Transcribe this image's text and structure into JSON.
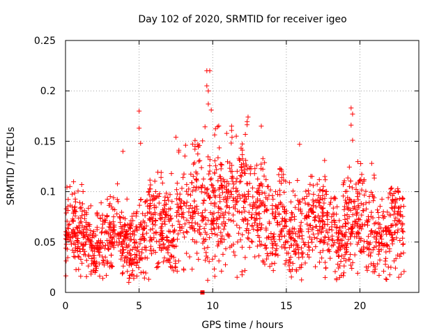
{
  "chart_data": {
    "type": "scatter",
    "title": "Day 102 of 2020, SRMTID for receiver igeo",
    "xlabel": "GPS time / hours",
    "ylabel": "SRMTID / TECUs",
    "xlim": [
      0,
      24
    ],
    "ylim": [
      0,
      0.25
    ],
    "xticks": [
      0,
      5,
      10,
      15,
      20
    ],
    "yticks": [
      0,
      0.05,
      0.1,
      0.15,
      0.2,
      0.25
    ],
    "xtick_labels": [
      "0",
      "5",
      "10",
      "15",
      "20"
    ],
    "ytick_labels": [
      "0",
      "0.05",
      "0.1",
      "0.15",
      "0.2",
      "0.25"
    ],
    "grid": true,
    "marker": "+",
    "series_color": "#ff0000",
    "outlier": {
      "x": 9.3,
      "y": 0.0
    },
    "features": [
      {
        "x": 5.0,
        "y": 0.18
      },
      {
        "x": 5.0,
        "y": 0.163
      },
      {
        "x": 5.1,
        "y": 0.148
      },
      {
        "x": 9.6,
        "y": 0.22
      },
      {
        "x": 9.8,
        "y": 0.22
      },
      {
        "x": 9.6,
        "y": 0.205
      },
      {
        "x": 9.7,
        "y": 0.2
      },
      {
        "x": 9.7,
        "y": 0.187
      },
      {
        "x": 9.9,
        "y": 0.181
      },
      {
        "x": 19.4,
        "y": 0.183
      },
      {
        "x": 19.5,
        "y": 0.177
      },
      {
        "x": 19.4,
        "y": 0.166
      },
      {
        "x": 19.5,
        "y": 0.151
      },
      {
        "x": 12.4,
        "y": 0.174
      },
      {
        "x": 13.3,
        "y": 0.165
      },
      {
        "x": 14.8,
        "y": 0.117
      },
      {
        "x": 15.9,
        "y": 0.147
      },
      {
        "x": 17.6,
        "y": 0.131
      },
      {
        "x": 3.9,
        "y": 0.14
      },
      {
        "x": 7.5,
        "y": 0.154
      },
      {
        "x": 8.8,
        "y": 0.145
      },
      {
        "x": 11.6,
        "y": 0.155
      },
      {
        "x": 0.3,
        "y": 0.105
      },
      {
        "x": 1.1,
        "y": 0.107
      },
      {
        "x": 20.8,
        "y": 0.128
      },
      {
        "x": 22.3,
        "y": 0.098
      },
      {
        "x": 4.3,
        "y": 0.01
      },
      {
        "x": 8.6,
        "y": 0.023
      },
      {
        "x": 21.3,
        "y": 0.017
      },
      {
        "x": 22.8,
        "y": 0.018
      }
    ],
    "background_model": {
      "description": "approximate dense point cloud: ~2000 scattered + marks from x=0 to ~23, values mostly between 0.02 and 0.12",
      "count": 2000,
      "seed": 102,
      "x_range": [
        0,
        23
      ],
      "baseline_segments": [
        {
          "x": [
            0,
            5
          ],
          "mean": 0.052,
          "spread": 0.018,
          "max": 0.11
        },
        {
          "x": [
            5,
            7.5
          ],
          "mean": 0.06,
          "spread": 0.022,
          "max": 0.13
        },
        {
          "x": [
            7.5,
            9.3
          ],
          "mean": 0.08,
          "spread": 0.028,
          "max": 0.16
        },
        {
          "x": [
            9.3,
            13.5
          ],
          "mean": 0.09,
          "spread": 0.03,
          "max": 0.17
        },
        {
          "x": [
            13.5,
            15
          ],
          "mean": 0.065,
          "spread": 0.022,
          "max": 0.13
        },
        {
          "x": [
            15,
            19
          ],
          "mean": 0.065,
          "spread": 0.02,
          "max": 0.12
        },
        {
          "x": [
            19,
            21
          ],
          "mean": 0.07,
          "spread": 0.024,
          "max": 0.13
        },
        {
          "x": [
            21,
            23
          ],
          "mean": 0.06,
          "spread": 0.02,
          "max": 0.11
        }
      ]
    }
  }
}
